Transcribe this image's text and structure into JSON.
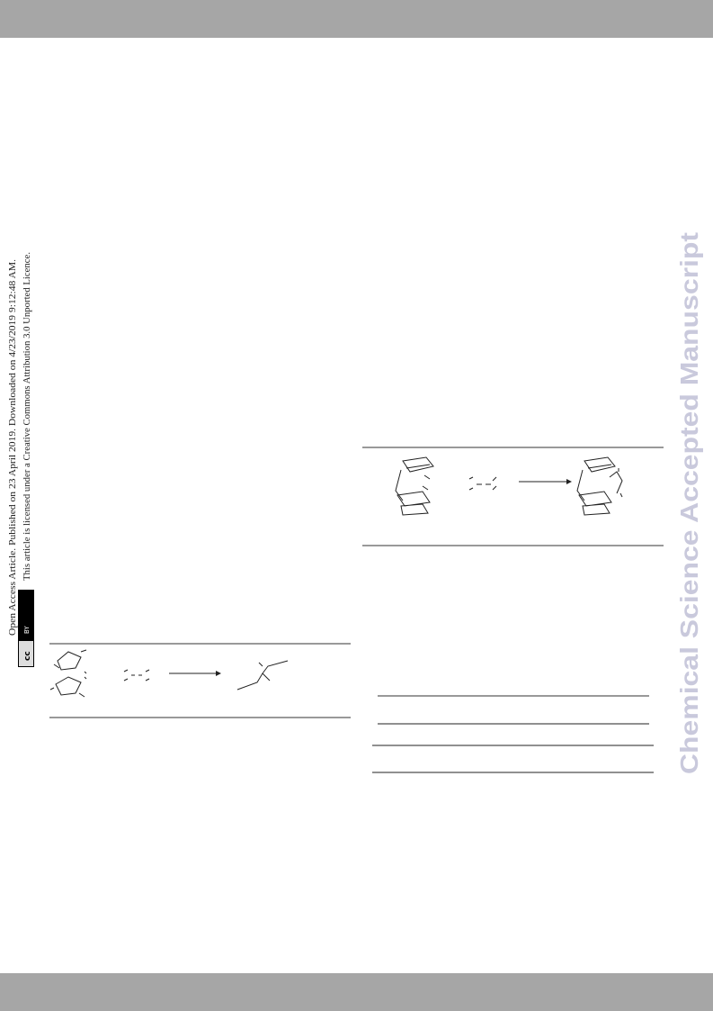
{
  "sidebar": {
    "line1": "Open Access Article. Published on 23 April 2019. Downloaded on 4/23/2019 9:12:48 AM.",
    "line2": "This article is licensed under a Creative Commons Attribution 3.0 Unported Licence.",
    "badge": [
      "cc",
      "BY"
    ]
  },
  "watermark": "Chemical Science Accepted Manuscript"
}
